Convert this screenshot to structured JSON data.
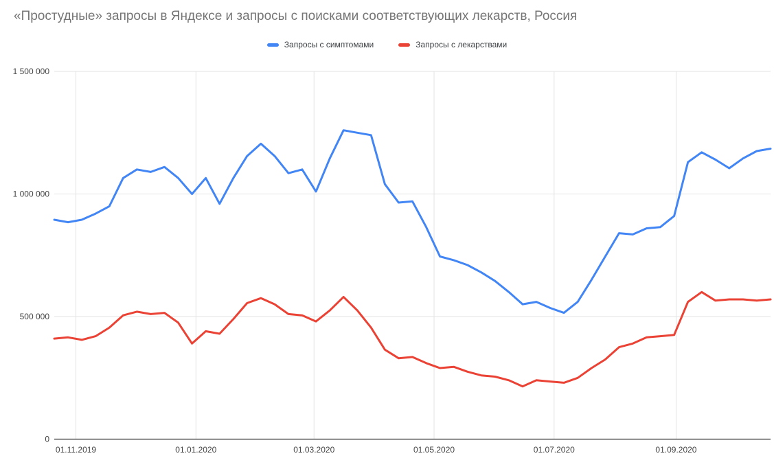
{
  "chart_data": {
    "type": "line",
    "title": "«Простудные» запросы в Яндексе и запросы с поисками соответствующих лекарств, Россия",
    "legend_position": "top",
    "grid": true,
    "x_interval": "weekly",
    "x_start_date": "21.10.2019",
    "categories": [
      "21.10.2019",
      "28.10.2019",
      "04.11.2019",
      "11.11.2019",
      "18.11.2019",
      "25.11.2019",
      "02.12.2019",
      "09.12.2019",
      "16.12.2019",
      "23.12.2019",
      "30.12.2019",
      "06.01.2020",
      "13.01.2020",
      "20.01.2020",
      "27.01.2020",
      "03.02.2020",
      "10.02.2020",
      "17.02.2020",
      "24.02.2020",
      "02.03.2020",
      "09.03.2020",
      "16.03.2020",
      "23.03.2020",
      "30.03.2020",
      "06.04.2020",
      "13.04.2020",
      "20.04.2020",
      "27.04.2020",
      "04.05.2020",
      "11.05.2020",
      "18.05.2020",
      "25.05.2020",
      "01.06.2020",
      "08.06.2020",
      "15.06.2020",
      "22.06.2020",
      "29.06.2020",
      "06.07.2020",
      "13.07.2020",
      "20.07.2020",
      "27.07.2020",
      "03.08.2020",
      "10.08.2020",
      "17.08.2020",
      "24.08.2020",
      "31.08.2020",
      "07.09.2020",
      "14.09.2020",
      "21.09.2020",
      "28.09.2020",
      "05.10.2020",
      "12.10.2020",
      "19.10.2020"
    ],
    "series": [
      {
        "name": "Запросы с симптомами",
        "color": "#4285f4",
        "values": [
          895000,
          885000,
          895000,
          920000,
          950000,
          1065000,
          1100000,
          1090000,
          1110000,
          1065000,
          1000000,
          1065000,
          960000,
          1065000,
          1155000,
          1205000,
          1155000,
          1085000,
          1100000,
          1010000,
          1145000,
          1260000,
          1250000,
          1240000,
          1040000,
          965000,
          970000,
          865000,
          745000,
          730000,
          710000,
          680000,
          645000,
          600000,
          550000,
          560000,
          535000,
          515000,
          560000,
          650000,
          745000,
          840000,
          835000,
          860000,
          865000,
          910000,
          1130000,
          1170000,
          1140000,
          1105000,
          1145000,
          1175000,
          1185000
        ]
      },
      {
        "name": "Запросы с лекарствами",
        "color": "#ea4335",
        "values": [
          410000,
          415000,
          405000,
          420000,
          455000,
          505000,
          520000,
          510000,
          515000,
          475000,
          390000,
          440000,
          430000,
          490000,
          555000,
          575000,
          550000,
          510000,
          505000,
          480000,
          525000,
          580000,
          525000,
          455000,
          365000,
          330000,
          335000,
          310000,
          290000,
          295000,
          275000,
          260000,
          255000,
          240000,
          215000,
          240000,
          235000,
          230000,
          250000,
          290000,
          325000,
          375000,
          390000,
          415000,
          420000,
          425000,
          560000,
          600000,
          565000,
          570000,
          570000,
          565000,
          570000
        ]
      }
    ],
    "ylim": [
      0,
      1500000
    ],
    "yticks": [
      {
        "value": 0,
        "label": "0"
      },
      {
        "value": 500000,
        "label": "500 000"
      },
      {
        "value": 1000000,
        "label": "1 000 000"
      },
      {
        "value": 1500000,
        "label": "1 500 000"
      }
    ],
    "xticks": [
      {
        "label": "01.11.2019",
        "day_offset": 11
      },
      {
        "label": "01.01.2020",
        "day_offset": 72
      },
      {
        "label": "01.03.2020",
        "day_offset": 132
      },
      {
        "label": "01.05.2020",
        "day_offset": 193
      },
      {
        "label": "01.07.2020",
        "day_offset": 254
      },
      {
        "label": "01.09.2020",
        "day_offset": 316
      }
    ],
    "colors": {
      "grid_line": "#e3e3e3",
      "axis_line": "#333333",
      "tick_label": "#444444",
      "title_text": "#757575",
      "legend_text": "#3c4043",
      "background": "#ffffff"
    }
  }
}
